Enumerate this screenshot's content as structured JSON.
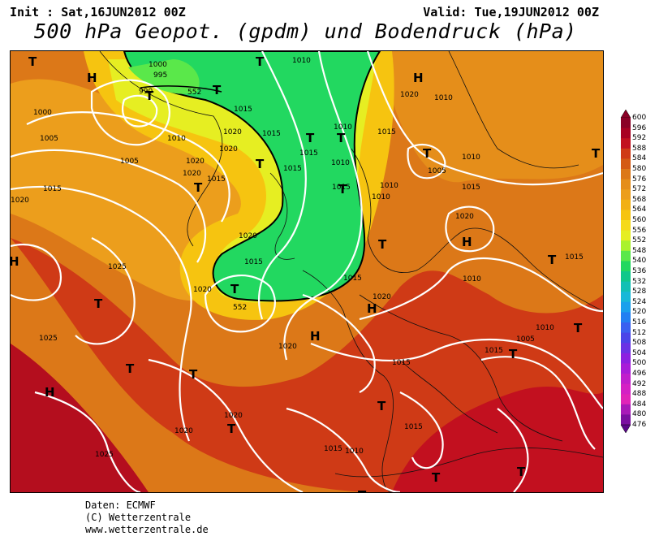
{
  "header": {
    "init": "Init : Sat,16JUN2012 00Z",
    "valid": "Valid: Tue,19JUN2012 00Z",
    "title": "500 hPa Geopot. (gpdm) und Bodendruck (hPa)"
  },
  "map": {
    "background_color": "#d8701c",
    "isobar_labels": [
      "1000",
      "995",
      "990",
      "1005",
      "1010",
      "1000",
      "1005",
      "1010",
      "1015",
      "1020",
      "1020",
      "1020",
      "1015",
      "1020",
      "1015",
      "1015",
      "1015",
      "1010",
      "1015",
      "1020",
      "1010",
      "1015",
      "1010",
      "1010",
      "1015",
      "1020",
      "1025",
      "1015",
      "1020",
      "1010",
      "1005",
      "1010",
      "1015",
      "1015",
      "1020",
      "1020",
      "1015",
      "1025",
      "1020",
      "1025",
      "1025",
      "1020",
      "1020",
      "1015",
      "1015",
      "1010",
      "1010",
      "1005",
      "1010",
      "1020",
      "1015",
      "1015",
      "1020",
      "1020",
      "1010",
      "1015"
    ],
    "height_labels": [
      "552",
      "552"
    ],
    "systems": [
      "H",
      "T",
      "T",
      "T",
      "T",
      "T",
      "T",
      "T",
      "T",
      "T",
      "T",
      "T",
      "H",
      "T",
      "T",
      "H",
      "H",
      "T",
      "T",
      "H",
      "T",
      "T",
      "T",
      "T",
      "T",
      "T",
      "T",
      "T",
      "H",
      "H",
      "T",
      "T"
    ]
  },
  "legend": {
    "unit": "gpdm",
    "ticks": [
      "600",
      "596",
      "592",
      "588",
      "584",
      "580",
      "576",
      "572",
      "568",
      "564",
      "560",
      "556",
      "552",
      "548",
      "540",
      "536",
      "532",
      "528",
      "524",
      "520",
      "516",
      "512",
      "508",
      "504",
      "500",
      "496",
      "492",
      "488",
      "484",
      "480",
      "476"
    ],
    "colors": [
      "#8a0026",
      "#a80022",
      "#c2101f",
      "#cf3a16",
      "#d45a14",
      "#dc7818",
      "#e58e1a",
      "#ec9e1c",
      "#f2b014",
      "#f6c410",
      "#f5da1a",
      "#e6ee22",
      "#aaf22e",
      "#5ae84a",
      "#22d860",
      "#10c88a",
      "#12c0b4",
      "#18b8d8",
      "#1aa0ec",
      "#2280f2",
      "#3a60f0",
      "#4a44e8",
      "#6a32e4",
      "#8c20e0",
      "#a81cd8",
      "#c01ecc",
      "#d420c4",
      "#e024b8",
      "#a81ab8",
      "#7a10a0",
      "#5a0888"
    ]
  },
  "credits": {
    "line1": "Daten: ECMWF",
    "line2": "(C) Wetterzentrale",
    "line3": "www.wetterzentrale.de"
  }
}
